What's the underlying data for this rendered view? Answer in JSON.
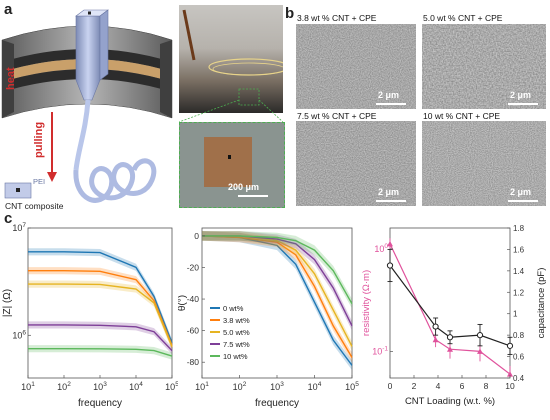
{
  "panel_a": {
    "letter": "a",
    "heat_label": "heat",
    "pulling_label": "pulling",
    "pei_label": "PEI",
    "composite_label": "CNT composite",
    "photo_scalebar": "200 μm"
  },
  "panel_b": {
    "letter": "b",
    "images": [
      {
        "title": "3.8 wt % CNT + CPE",
        "scalebar": "2 μm"
      },
      {
        "title": "5.0 wt % CNT + CPE",
        "scalebar": "2 μm"
      },
      {
        "title": "7.5 wt % CNT + CPE",
        "scalebar": "2 μm"
      },
      {
        "title": "10 wt % CNT + CPE",
        "scalebar": "2 μm"
      }
    ]
  },
  "panel_c": {
    "letter": "c"
  },
  "colors": {
    "s0": "#1f77b4",
    "s1": "#ff7f0e",
    "s2": "#e6b422",
    "s3": "#7e3f98",
    "s4": "#5cb85c",
    "resistivity": "#e0529c",
    "capacitance": "#222222",
    "fiber": "#b9c6ea"
  },
  "chart_data": [
    {
      "type": "line",
      "xlabel": "frequency",
      "ylabel": "|Z| (Ω)",
      "xscale": "log",
      "yscale": "log",
      "xlim": [
        10,
        100000
      ],
      "ylim": [
        400000,
        10000000
      ],
      "x_ticks": [
        {
          "v": 10,
          "base": "10",
          "exp": "1"
        },
        {
          "v": 100,
          "base": "10",
          "exp": "2"
        },
        {
          "v": 1000,
          "base": "10",
          "exp": "3"
        },
        {
          "v": 10000,
          "base": "10",
          "exp": "4"
        },
        {
          "v": 100000,
          "base": "10",
          "exp": "5"
        }
      ],
      "y_ticks": [
        {
          "v": 1000000,
          "base": "10",
          "exp": "6"
        },
        {
          "v": 10000000,
          "base": "10",
          "exp": "7"
        }
      ],
      "x": [
        10,
        100,
        1000,
        10000,
        31623,
        100000
      ],
      "series": [
        {
          "color_key": "s0",
          "values": [
            6000000,
            6000000,
            5900000,
            4300000,
            2300000,
            850000
          ]
        },
        {
          "color_key": "s1",
          "values": [
            4000000,
            4000000,
            3950000,
            3300000,
            2100000,
            800000
          ]
        },
        {
          "color_key": "s2",
          "values": [
            3000000,
            3000000,
            2980000,
            2700000,
            2000000,
            780000
          ]
        },
        {
          "color_key": "s3",
          "values": [
            1250000,
            1250000,
            1240000,
            1200000,
            1080000,
            720000
          ]
        },
        {
          "color_key": "s4",
          "values": [
            750000,
            750000,
            748000,
            740000,
            720000,
            640000
          ]
        }
      ]
    },
    {
      "type": "line",
      "xlabel": "frequency",
      "ylabel": "θ(°)",
      "xscale": "log",
      "xlim": [
        10,
        100000
      ],
      "ylim": [
        -90,
        5
      ],
      "x_ticks": [
        {
          "v": 10,
          "base": "10",
          "exp": "1"
        },
        {
          "v": 100,
          "base": "10",
          "exp": "2"
        },
        {
          "v": 1000,
          "base": "10",
          "exp": "3"
        },
        {
          "v": 10000,
          "base": "10",
          "exp": "4"
        },
        {
          "v": 100000,
          "base": "10",
          "exp": "5"
        }
      ],
      "y_ticks": [
        0,
        -20,
        -40,
        -60,
        -80
      ],
      "x": [
        10,
        100,
        1000,
        3162,
        10000,
        31623,
        100000
      ],
      "series": [
        {
          "name": "0 wt%",
          "color_key": "s0",
          "values": [
            0,
            -1,
            -6,
            -18,
            -42,
            -66,
            -82
          ]
        },
        {
          "name": "3.8 wt%",
          "color_key": "s1",
          "values": [
            0,
            -1,
            -4,
            -12,
            -32,
            -57,
            -77
          ]
        },
        {
          "name": "5.0 wt%",
          "color_key": "s2",
          "values": [
            0,
            0,
            -3,
            -9,
            -24,
            -47,
            -70
          ]
        },
        {
          "name": "7.5 wt%",
          "color_key": "s3",
          "values": [
            0,
            0,
            -2,
            -5,
            -15,
            -33,
            -57
          ]
        },
        {
          "name": "10 wt%",
          "color_key": "s4",
          "values": [
            0,
            0,
            -1,
            -3,
            -9,
            -22,
            -43
          ]
        }
      ],
      "legend": "lower-left"
    },
    {
      "type": "line",
      "xlabel": "CNT Loading (w.t. %)",
      "ylabel_left": "resistivity (Ω·m)",
      "ylabel_right": "capacitance (pF)",
      "xlim": [
        0,
        10
      ],
      "x_ticks": [
        0,
        2,
        4,
        6,
        8,
        10
      ],
      "y_left_scale": "log",
      "y_left_lim": [
        0.055,
        1.6
      ],
      "y_left_ticks": [
        {
          "v": 1,
          "base": "10",
          "exp": "0"
        },
        {
          "v": 0.1,
          "base": "10",
          "exp": "-1"
        }
      ],
      "y_right_lim": [
        0.4,
        1.8
      ],
      "y_right_ticks": [
        1.8,
        1.6,
        1.4,
        1.2,
        1,
        0.8,
        0.6,
        0.4
      ],
      "x": [
        0,
        3.8,
        5.0,
        7.5,
        10
      ],
      "resistivity": {
        "values": [
          1.12,
          0.13,
          0.105,
          0.1,
          0.06
        ],
        "errors": [
          0.15,
          0.02,
          0.02,
          0.02,
          0.012
        ]
      },
      "capacitance": {
        "values": [
          1.45,
          0.88,
          0.78,
          0.8,
          0.7
        ],
        "errors": [
          0.15,
          0.08,
          0.06,
          0.1,
          0.08
        ]
      }
    }
  ]
}
